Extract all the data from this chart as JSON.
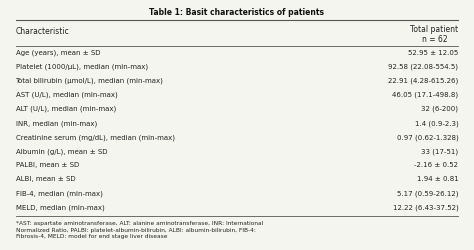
{
  "title": "Table 1: Basit characteristics of patients",
  "col1_header": "Characteristic",
  "col2_header": "Total patient\nn = 62",
  "rows": [
    [
      "Age (years), mean ± SD",
      "52.95 ± 12.05"
    ],
    [
      "Platelet (1000/μL), median (min-max)",
      "92.58 (22.08-554.5)"
    ],
    [
      "Total bilirubin (μmol/L), median (min-max)",
      "22.91 (4.28-615.26)"
    ],
    [
      "AST (U/L), median (min-max)",
      "46.05 (17.1-498.8)"
    ],
    [
      "ALT (U/L), median (min-max)",
      "32 (6-200)"
    ],
    [
      "INR, median (min-max)",
      "1.4 (0.9-2.3)"
    ],
    [
      "Creatinine serum (mg/dL), median (min-max)",
      "0.97 (0.62-1.328)"
    ],
    [
      "Albumin (g/L), mean ± SD",
      "33 (17-51)"
    ],
    [
      "PALBI, mean ± SD",
      "-2.16 ± 0.52"
    ],
    [
      "ALBI, mean ± SD",
      "1.94 ± 0.81"
    ],
    [
      "FIB-4, median (min-max)",
      "5.17 (0.59-26.12)"
    ],
    [
      "MELD, median (min-max)",
      "12.22 (6.43-37.52)"
    ]
  ],
  "footnote": "*AST: aspartate aminotransferase, ALT: alanine aminotransferase, INR: International\nNormalized Ratio, PALBI: platelet-albumin-bilirubin, ALBI: albumin-bilirubin, FIB-4:\nFibrosis-4, MELD: model for end stage liver disease",
  "bg_color": "#f5f5f0",
  "header_line_color": "#555555",
  "text_color": "#222222",
  "title_color": "#111111"
}
